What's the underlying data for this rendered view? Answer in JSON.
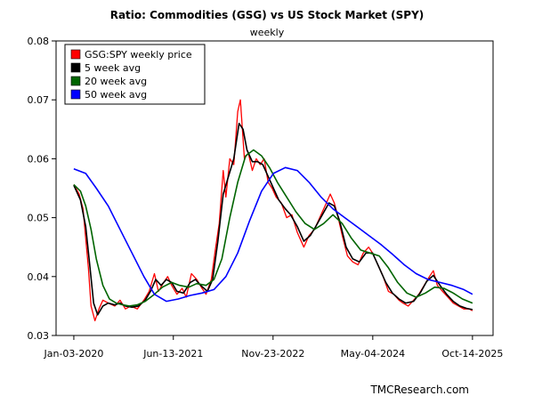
{
  "chart_data": {
    "type": "line",
    "title": "Ratio: Commodities (GSG) vs US Stock Market (SPY)",
    "subtitle": "weekly",
    "source": "TMCResearch.com",
    "ylim": [
      0.03,
      0.08
    ],
    "yticks": [
      {
        "value": 0.03,
        "label": "0.03"
      },
      {
        "value": 0.04,
        "label": "0.04"
      },
      {
        "value": 0.05,
        "label": "0.05"
      },
      {
        "value": 0.06,
        "label": "0.06"
      },
      {
        "value": 0.07,
        "label": "0.07"
      },
      {
        "value": 0.08,
        "label": "0.08"
      }
    ],
    "xlim": [
      "2019-10-01",
      "2026-01-31"
    ],
    "xticks": [
      {
        "date": "2020-01-03",
        "label": "Jan-03-2020"
      },
      {
        "date": "2021-06-13",
        "label": "Jun-13-2021"
      },
      {
        "date": "2022-11-23",
        "label": "Nov-23-2022"
      },
      {
        "date": "2024-05-04",
        "label": "May-04-2024"
      },
      {
        "date": "2025-10-14",
        "label": "Oct-14-2025"
      }
    ],
    "grid": false,
    "legend_position": "top-left",
    "series": [
      {
        "name": "GSG:SPY weekly price",
        "color": "#ff0000",
        "width": 1.3,
        "points": [
          [
            "2020-01-03",
            0.0556
          ],
          [
            "2020-01-31",
            0.054
          ],
          [
            "2020-02-21",
            0.0515
          ],
          [
            "2020-03-06",
            0.0465
          ],
          [
            "2020-03-20",
            0.0415
          ],
          [
            "2020-04-03",
            0.035
          ],
          [
            "2020-04-24",
            0.0325
          ],
          [
            "2020-05-15",
            0.0345
          ],
          [
            "2020-06-05",
            0.036
          ],
          [
            "2020-07-03",
            0.0355
          ],
          [
            "2020-08-07",
            0.035
          ],
          [
            "2020-09-04",
            0.036
          ],
          [
            "2020-10-02",
            0.0345
          ],
          [
            "2020-10-30",
            0.035
          ],
          [
            "2020-12-04",
            0.0345
          ],
          [
            "2021-01-08",
            0.036
          ],
          [
            "2021-02-05",
            0.0375
          ],
          [
            "2021-03-05",
            0.0405
          ],
          [
            "2021-03-26",
            0.0375
          ],
          [
            "2021-04-23",
            0.039
          ],
          [
            "2021-05-14",
            0.04
          ],
          [
            "2021-06-04",
            0.0385
          ],
          [
            "2021-07-02",
            0.037
          ],
          [
            "2021-07-30",
            0.038
          ],
          [
            "2021-08-20",
            0.0365
          ],
          [
            "2021-09-17",
            0.0405
          ],
          [
            "2021-10-15",
            0.0395
          ],
          [
            "2021-11-12",
            0.038
          ],
          [
            "2021-12-03",
            0.037
          ],
          [
            "2021-12-31",
            0.0395
          ],
          [
            "2022-01-21",
            0.0445
          ],
          [
            "2022-02-11",
            0.049
          ],
          [
            "2022-03-04",
            0.058
          ],
          [
            "2022-03-18",
            0.0535
          ],
          [
            "2022-04-08",
            0.06
          ],
          [
            "2022-04-29",
            0.059
          ],
          [
            "2022-05-20",
            0.068
          ],
          [
            "2022-06-03",
            0.07
          ],
          [
            "2022-06-24",
            0.06
          ],
          [
            "2022-07-15",
            0.061
          ],
          [
            "2022-08-05",
            0.058
          ],
          [
            "2022-08-26",
            0.06
          ],
          [
            "2022-09-16",
            0.059
          ],
          [
            "2022-10-07",
            0.06
          ],
          [
            "2022-10-28",
            0.056
          ],
          [
            "2022-11-18",
            0.055
          ],
          [
            "2022-12-09",
            0.0535
          ],
          [
            "2023-01-06",
            0.0525
          ],
          [
            "2023-02-03",
            0.05
          ],
          [
            "2023-03-03",
            0.0505
          ],
          [
            "2023-03-31",
            0.0475
          ],
          [
            "2023-05-05",
            0.045
          ],
          [
            "2023-06-02",
            0.047
          ],
          [
            "2023-06-30",
            0.048
          ],
          [
            "2023-07-28",
            0.05
          ],
          [
            "2023-08-25",
            0.052
          ],
          [
            "2023-09-22",
            0.054
          ],
          [
            "2023-10-13",
            0.0525
          ],
          [
            "2023-11-03",
            0.05
          ],
          [
            "2023-11-24",
            0.047
          ],
          [
            "2023-12-22",
            0.0435
          ],
          [
            "2024-01-19",
            0.0425
          ],
          [
            "2024-02-16",
            0.042
          ],
          [
            "2024-03-15",
            0.044
          ],
          [
            "2024-04-12",
            0.045
          ],
          [
            "2024-05-03",
            0.044
          ],
          [
            "2024-05-31",
            0.042
          ],
          [
            "2024-06-28",
            0.04
          ],
          [
            "2024-07-26",
            0.0375
          ],
          [
            "2024-08-23",
            0.037
          ],
          [
            "2024-09-20",
            0.036
          ],
          [
            "2024-10-11",
            0.0355
          ],
          [
            "2024-11-08",
            0.035
          ],
          [
            "2024-12-06",
            0.036
          ],
          [
            "2025-01-03",
            0.037
          ],
          [
            "2025-01-31",
            0.0385
          ],
          [
            "2025-02-28",
            0.04
          ],
          [
            "2025-03-21",
            0.041
          ],
          [
            "2025-04-11",
            0.0385
          ],
          [
            "2025-05-09",
            0.0375
          ],
          [
            "2025-06-06",
            0.0365
          ],
          [
            "2025-07-04",
            0.0355
          ],
          [
            "2025-08-01",
            0.035
          ],
          [
            "2025-08-29",
            0.0345
          ],
          [
            "2025-09-26",
            0.0345
          ],
          [
            "2025-10-14",
            0.0342
          ]
        ]
      },
      {
        "name": "5 week avg",
        "color": "#000000",
        "width": 1.6,
        "points": [
          [
            "2020-01-03",
            0.0555
          ],
          [
            "2020-02-07",
            0.053
          ],
          [
            "2020-03-06",
            0.0485
          ],
          [
            "2020-03-27",
            0.042
          ],
          [
            "2020-04-17",
            0.0355
          ],
          [
            "2020-05-08",
            0.0335
          ],
          [
            "2020-06-05",
            0.035
          ],
          [
            "2020-07-03",
            0.0355
          ],
          [
            "2020-08-07",
            0.0352
          ],
          [
            "2020-09-04",
            0.0355
          ],
          [
            "2020-10-02",
            0.035
          ],
          [
            "2020-11-06",
            0.0348
          ],
          [
            "2020-12-11",
            0.035
          ],
          [
            "2021-01-15",
            0.036
          ],
          [
            "2021-02-12",
            0.0375
          ],
          [
            "2021-03-12",
            0.0395
          ],
          [
            "2021-04-09",
            0.0385
          ],
          [
            "2021-05-07",
            0.0395
          ],
          [
            "2021-06-04",
            0.039
          ],
          [
            "2021-07-02",
            0.0375
          ],
          [
            "2021-08-06",
            0.0372
          ],
          [
            "2021-09-10",
            0.039
          ],
          [
            "2021-10-08",
            0.0395
          ],
          [
            "2021-11-05",
            0.0385
          ],
          [
            "2021-12-10",
            0.0375
          ],
          [
            "2022-01-07",
            0.0395
          ],
          [
            "2022-02-04",
            0.046
          ],
          [
            "2022-03-04",
            0.054
          ],
          [
            "2022-04-01",
            0.057
          ],
          [
            "2022-04-29",
            0.06
          ],
          [
            "2022-05-27",
            0.066
          ],
          [
            "2022-06-17",
            0.065
          ],
          [
            "2022-07-08",
            0.0615
          ],
          [
            "2022-08-05",
            0.0595
          ],
          [
            "2022-09-02",
            0.0595
          ],
          [
            "2022-09-30",
            0.059
          ],
          [
            "2022-10-28",
            0.057
          ],
          [
            "2022-11-25",
            0.055
          ],
          [
            "2022-12-23",
            0.053
          ],
          [
            "2023-01-27",
            0.0515
          ],
          [
            "2023-02-24",
            0.0505
          ],
          [
            "2023-03-31",
            0.0485
          ],
          [
            "2023-05-05",
            0.046
          ],
          [
            "2023-06-09",
            0.047
          ],
          [
            "2023-07-07",
            0.0485
          ],
          [
            "2023-08-11",
            0.0505
          ],
          [
            "2023-09-15",
            0.0525
          ],
          [
            "2023-10-13",
            0.052
          ],
          [
            "2023-11-10",
            0.0495
          ],
          [
            "2023-12-15",
            0.045
          ],
          [
            "2024-01-19",
            0.043
          ],
          [
            "2024-02-23",
            0.0425
          ],
          [
            "2024-03-29",
            0.044
          ],
          [
            "2024-05-03",
            0.044
          ],
          [
            "2024-06-07",
            0.0415
          ],
          [
            "2024-07-12",
            0.039
          ],
          [
            "2024-08-16",
            0.0372
          ],
          [
            "2024-09-20",
            0.0362
          ],
          [
            "2024-10-25",
            0.0355
          ],
          [
            "2024-12-06",
            0.0358
          ],
          [
            "2025-01-10",
            0.0372
          ],
          [
            "2025-02-14",
            0.0392
          ],
          [
            "2025-03-21",
            0.0402
          ],
          [
            "2025-04-25",
            0.0385
          ],
          [
            "2025-05-30",
            0.037
          ],
          [
            "2025-07-04",
            0.0358
          ],
          [
            "2025-08-08",
            0.035
          ],
          [
            "2025-09-12",
            0.0346
          ],
          [
            "2025-10-14",
            0.0344
          ]
        ]
      },
      {
        "name": "20 week avg",
        "color": "#006400",
        "width": 1.6,
        "points": [
          [
            "2020-01-03",
            0.0556
          ],
          [
            "2020-02-07",
            0.0545
          ],
          [
            "2020-03-06",
            0.052
          ],
          [
            "2020-04-03",
            0.048
          ],
          [
            "2020-05-01",
            0.043
          ],
          [
            "2020-06-05",
            0.0385
          ],
          [
            "2020-07-10",
            0.0362
          ],
          [
            "2020-08-14",
            0.0355
          ],
          [
            "2020-09-18",
            0.0352
          ],
          [
            "2020-10-23",
            0.035
          ],
          [
            "2020-12-04",
            0.0352
          ],
          [
            "2021-01-15",
            0.0358
          ],
          [
            "2021-03-05",
            0.037
          ],
          [
            "2021-04-16",
            0.0382
          ],
          [
            "2021-06-04",
            0.039
          ],
          [
            "2021-07-16",
            0.0385
          ],
          [
            "2021-09-03",
            0.0382
          ],
          [
            "2021-10-15",
            0.0388
          ],
          [
            "2021-12-03",
            0.0385
          ],
          [
            "2022-01-14",
            0.0395
          ],
          [
            "2022-02-25",
            0.043
          ],
          [
            "2022-04-08",
            0.05
          ],
          [
            "2022-05-20",
            0.056
          ],
          [
            "2022-07-01",
            0.0605
          ],
          [
            "2022-08-12",
            0.0615
          ],
          [
            "2022-09-23",
            0.0605
          ],
          [
            "2022-11-04",
            0.0585
          ],
          [
            "2022-12-16",
            0.056
          ],
          [
            "2023-02-03",
            0.0535
          ],
          [
            "2023-03-24",
            0.051
          ],
          [
            "2023-05-12",
            0.049
          ],
          [
            "2023-06-30",
            0.048
          ],
          [
            "2023-08-18",
            0.049
          ],
          [
            "2023-10-06",
            0.0505
          ],
          [
            "2023-11-24",
            0.049
          ],
          [
            "2024-01-12",
            0.0465
          ],
          [
            "2024-03-01",
            0.0445
          ],
          [
            "2024-04-19",
            0.044
          ],
          [
            "2024-06-07",
            0.0435
          ],
          [
            "2024-07-26",
            0.0415
          ],
          [
            "2024-09-13",
            0.039
          ],
          [
            "2024-11-01",
            0.0372
          ],
          [
            "2024-12-20",
            0.0365
          ],
          [
            "2025-02-07",
            0.0372
          ],
          [
            "2025-03-28",
            0.0382
          ],
          [
            "2025-05-16",
            0.038
          ],
          [
            "2025-07-04",
            0.0372
          ],
          [
            "2025-08-22",
            0.0362
          ],
          [
            "2025-10-14",
            0.0355
          ]
        ]
      },
      {
        "name": "50 week avg",
        "color": "#0000ff",
        "width": 1.6,
        "points": [
          [
            "2020-01-03",
            0.0583
          ],
          [
            "2020-03-06",
            0.0575
          ],
          [
            "2020-05-01",
            0.055
          ],
          [
            "2020-07-03",
            0.052
          ],
          [
            "2020-09-04",
            0.048
          ],
          [
            "2020-11-06",
            0.044
          ],
          [
            "2021-01-08",
            0.04
          ],
          [
            "2021-03-05",
            0.037
          ],
          [
            "2021-05-07",
            0.0358
          ],
          [
            "2021-07-09",
            0.0362
          ],
          [
            "2021-09-10",
            0.0368
          ],
          [
            "2021-11-12",
            0.0372
          ],
          [
            "2022-01-14",
            0.0378
          ],
          [
            "2022-03-18",
            0.04
          ],
          [
            "2022-05-20",
            0.044
          ],
          [
            "2022-07-22",
            0.0495
          ],
          [
            "2022-09-23",
            0.0545
          ],
          [
            "2022-11-25",
            0.0575
          ],
          [
            "2023-01-27",
            0.0585
          ],
          [
            "2023-03-31",
            0.058
          ],
          [
            "2023-06-02",
            0.056
          ],
          [
            "2023-08-04",
            0.0535
          ],
          [
            "2023-10-06",
            0.0515
          ],
          [
            "2023-12-08",
            0.05
          ],
          [
            "2024-02-09",
            0.0485
          ],
          [
            "2024-04-12",
            0.047
          ],
          [
            "2024-06-14",
            0.0455
          ],
          [
            "2024-08-16",
            0.0438
          ],
          [
            "2024-10-18",
            0.042
          ],
          [
            "2024-12-20",
            0.0405
          ],
          [
            "2025-02-21",
            0.0395
          ],
          [
            "2025-04-25",
            0.039
          ],
          [
            "2025-06-27",
            0.0385
          ],
          [
            "2025-08-29",
            0.0378
          ],
          [
            "2025-10-14",
            0.037
          ]
        ]
      }
    ]
  }
}
